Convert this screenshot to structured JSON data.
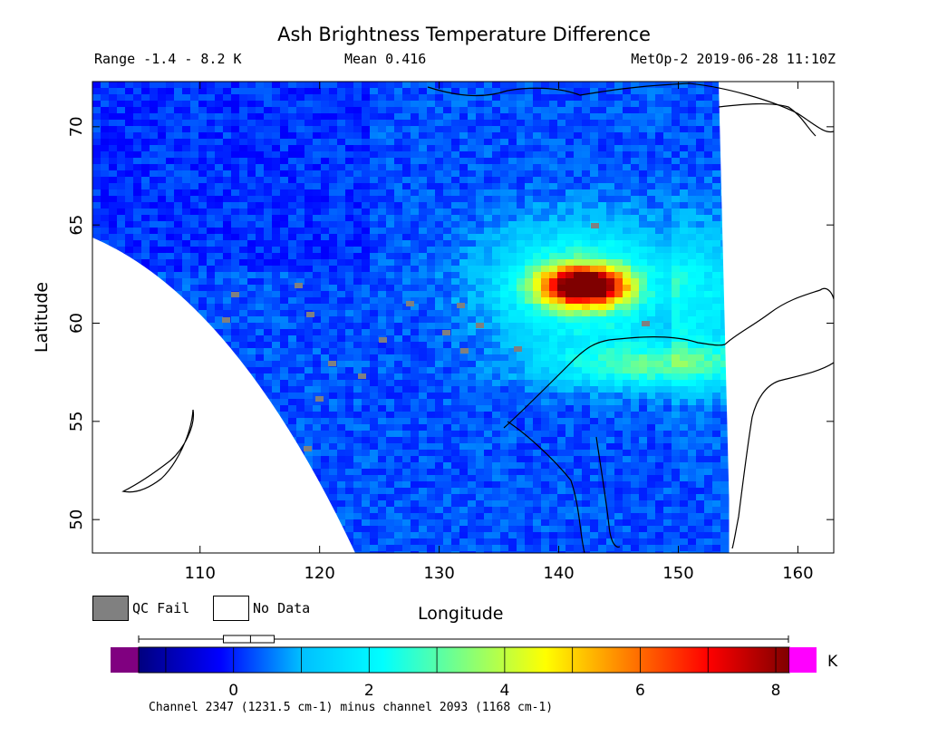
{
  "title": "Ash Brightness Temperature Difference",
  "range_text": "Range -1.4 - 8.2 K",
  "mean_text": "Mean 0.416",
  "satellite_text": "MetOp-2 2019-06-28 11:10Z",
  "x_axis": {
    "label": "Longitude",
    "min": 101,
    "max": 163,
    "ticks": [
      "110",
      "120",
      "130",
      "140",
      "150",
      "160"
    ]
  },
  "y_axis": {
    "label": "Latitude",
    "min": 48.3,
    "max": 72.3,
    "ticks": [
      "50",
      "55",
      "60",
      "65",
      "70"
    ]
  },
  "legend": {
    "qc_fail": "QC Fail",
    "no_data": "No Data",
    "qc_fail_color": "#808080",
    "no_data_color": "#ffffff"
  },
  "colorbar": {
    "min": -1.4,
    "max": 8.2,
    "unit": "K",
    "ticks": [
      "0",
      "2",
      "4",
      "6",
      "8"
    ],
    "under_color": "#800080",
    "over_color": "#ff00ff",
    "stops": [
      "#00007f",
      "#0000ff",
      "#00bfff",
      "#00ffff",
      "#7fff7f",
      "#ffff00",
      "#ff7f00",
      "#ff0000",
      "#7f0000"
    ]
  },
  "boxplot": {
    "min": -1.4,
    "q1": -0.15,
    "median": 0.25,
    "q3": 0.6,
    "max": 8.2
  },
  "footer": "Channel 2347 (1231.5 cm-1) minus channel 2093 (1168 cm-1)",
  "map_colors": {
    "background": "#0a2fe0",
    "coast": "#000000"
  },
  "hotspot": {
    "lon": 142,
    "lat": 62,
    "peak": 8.2
  }
}
